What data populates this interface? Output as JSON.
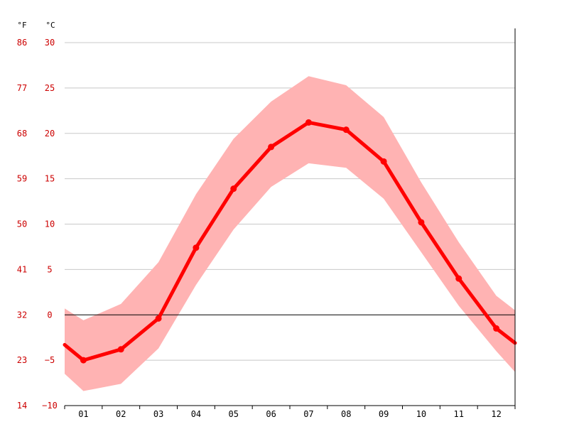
{
  "chart_data": {
    "type": "line",
    "units": {
      "fahrenheit": "°F",
      "celsius": "°C"
    },
    "categories": [
      "01",
      "02",
      "03",
      "04",
      "05",
      "06",
      "07",
      "08",
      "09",
      "10",
      "11",
      "12"
    ],
    "series": [
      {
        "values": [
          -5.0,
          -3.8,
          -0.4,
          7.4,
          13.9,
          18.5,
          21.2,
          20.4,
          16.9,
          10.2,
          4.0,
          -1.5
        ]
      }
    ],
    "band": {
      "upper": [
        -0.6,
        1.2,
        5.8,
        13.3,
        19.4,
        23.5,
        26.3,
        25.3,
        21.8,
        14.6,
        8.0,
        2.1
      ],
      "lower": [
        -8.4,
        -7.6,
        -3.7,
        3.3,
        9.4,
        14.1,
        16.7,
        16.2,
        12.8,
        6.9,
        1.0,
        -4.0
      ]
    },
    "edge_values": {
      "start": -3.3,
      "end": -3.1
    },
    "band_edges": {
      "start_upper": 0.7,
      "end_upper": 0.5,
      "start_lower": -6.5,
      "end_lower": -6.3
    },
    "y_ticks_celsius": [
      "30",
      "25",
      "20",
      "15",
      "10",
      "5",
      "0",
      "−5",
      "−10"
    ],
    "y_ticks_fahrenheit": [
      "86",
      "77",
      "68",
      "59",
      "50",
      "41",
      "32",
      "23",
      "14"
    ],
    "ylim": [
      -10,
      30
    ],
    "grid": true,
    "colors": {
      "line": "#ff0000",
      "band": "#ffb3b3",
      "grid": "#c8c8c8",
      "zero": "#000000",
      "text": "#cc0000"
    }
  }
}
